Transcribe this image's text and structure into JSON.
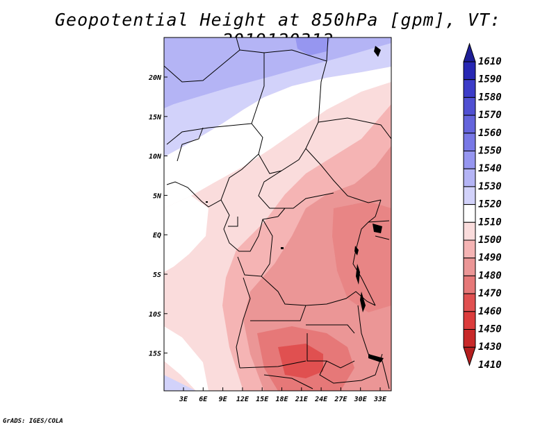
{
  "title": "Geopotential Height at 850hPa [gpm], VT: 2019120312",
  "credit": "GrADS: IGES/COLA",
  "map": {
    "lon_labels": [
      "3E",
      "6E",
      "9E",
      "12E",
      "15E",
      "18E",
      "21E",
      "24E",
      "27E",
      "30E",
      "33E"
    ],
    "lat_labels": [
      "20N",
      "15N",
      "10N",
      "5N",
      "EQ",
      "5S",
      "10S",
      "15S"
    ]
  },
  "colorbar": {
    "levels": [
      "1610",
      "1590",
      "1580",
      "1570",
      "1560",
      "1550",
      "1540",
      "1530",
      "1520",
      "1510",
      "1500",
      "1490",
      "1480",
      "1470",
      "1460",
      "1450",
      "1430",
      "1410"
    ],
    "colors": [
      "#1e1e96",
      "#2828b4",
      "#3c3cc8",
      "#5050d2",
      "#6464dc",
      "#7878e6",
      "#9696f0",
      "#b4b4f5",
      "#d2d2fa",
      "#ffffff",
      "#fadcdc",
      "#f5b4b4",
      "#eb9696",
      "#e67878",
      "#e05050",
      "#dc3c3c",
      "#c82828",
      "#b41e1e"
    ],
    "accent_top": "#1e1e96",
    "accent_bottom": "#b41e1e"
  }
}
